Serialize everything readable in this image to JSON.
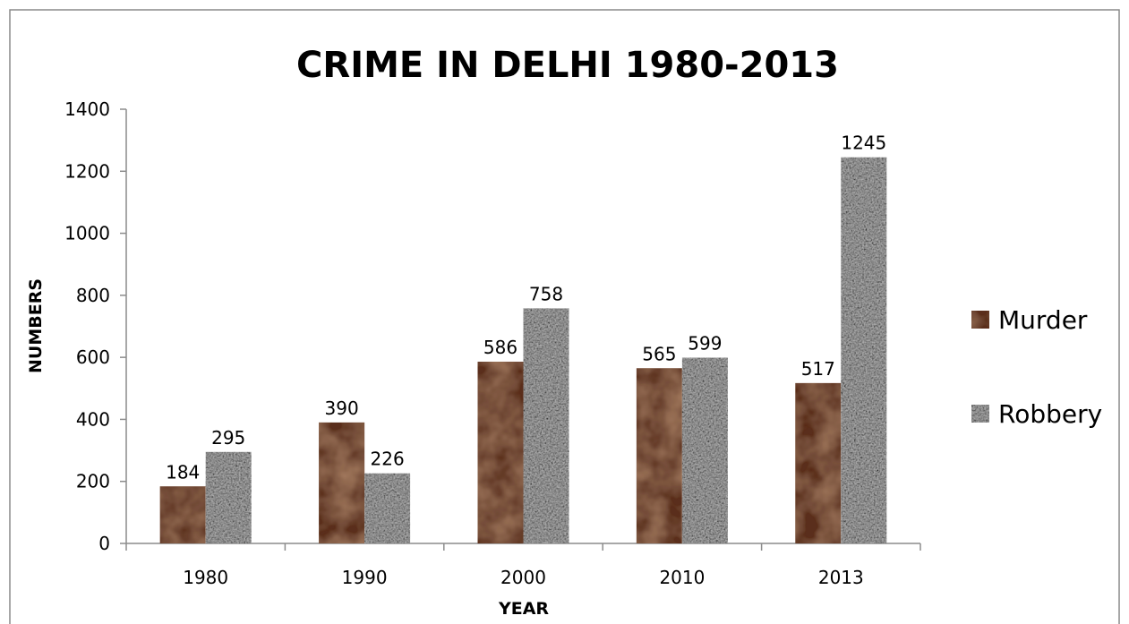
{
  "chart_data": {
    "type": "bar",
    "title": "CRIME IN DELHI 1980-2013",
    "xlabel": "YEAR",
    "ylabel": "NUMBERS",
    "categories": [
      "1980",
      "1990",
      "2000",
      "2010",
      "2013"
    ],
    "series": [
      {
        "name": "Murder",
        "values": [
          184,
          390,
          586,
          565,
          517
        ],
        "color": "#5a2e1c"
      },
      {
        "name": "Robbery",
        "values": [
          295,
          226,
          758,
          599,
          1245
        ],
        "color": "#c8c8c8"
      }
    ],
    "ylim": [
      0,
      1400
    ],
    "yticks": [
      "0",
      "200",
      "400",
      "600",
      "800",
      "1000",
      "1200",
      "1400"
    ],
    "grid": false,
    "legend_position": "right",
    "data_labels": true
  },
  "colors": {
    "border": "#8a8a8a",
    "axis": "#8c8c8c",
    "murder_dark": "#3e1f10",
    "murder_mid": "#5a2e1c",
    "murder_light": "#7a4a30",
    "robbery_dark": "#6e6e6e",
    "robbery_mid": "#a9a9a9",
    "robbery_light": "#e6e6e6"
  }
}
